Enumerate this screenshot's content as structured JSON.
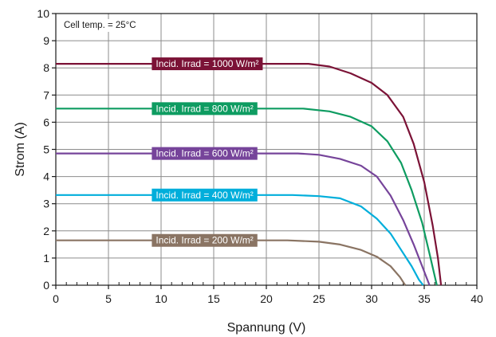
{
  "chart_data": {
    "type": "line",
    "title": "",
    "xlabel": "Spannung (V)",
    "ylabel": "Strom (A)",
    "xlim": [
      0,
      40
    ],
    "ylim": [
      0,
      10
    ],
    "x_ticks": [
      0,
      5,
      10,
      15,
      20,
      25,
      30,
      35,
      40
    ],
    "y_ticks": [
      0,
      1,
      2,
      3,
      4,
      5,
      6,
      7,
      8,
      9,
      10
    ],
    "grid": true,
    "annotation": "Cell temp. = 25°C",
    "series": [
      {
        "name": "Incid. Irrad = 1000 W/m²",
        "color": "#7b1236",
        "label_at": {
          "x": 9.5,
          "y": 8.15
        },
        "points": [
          [
            0,
            8.15
          ],
          [
            24,
            8.15
          ],
          [
            26,
            8.05
          ],
          [
            28,
            7.8
          ],
          [
            30,
            7.45
          ],
          [
            31.5,
            7.0
          ],
          [
            33,
            6.2
          ],
          [
            34,
            5.2
          ],
          [
            35,
            3.8
          ],
          [
            35.8,
            2.2
          ],
          [
            36.3,
            1.0
          ],
          [
            36.6,
            0
          ]
        ]
      },
      {
        "name": "Incid. Irrad = 800 W/m²",
        "color": "#0e9c61",
        "label_at": {
          "x": 9.5,
          "y": 6.5
        },
        "points": [
          [
            0,
            6.5
          ],
          [
            23.5,
            6.5
          ],
          [
            26,
            6.4
          ],
          [
            28,
            6.2
          ],
          [
            30,
            5.85
          ],
          [
            31.5,
            5.3
          ],
          [
            32.8,
            4.5
          ],
          [
            33.8,
            3.5
          ],
          [
            34.8,
            2.3
          ],
          [
            35.6,
            1.0
          ],
          [
            36.2,
            0
          ]
        ]
      },
      {
        "name": "Incid. Irrad = 600 W/m²",
        "color": "#76449a",
        "label_at": {
          "x": 9.5,
          "y": 4.85
        },
        "points": [
          [
            0,
            4.85
          ],
          [
            23,
            4.85
          ],
          [
            25,
            4.8
          ],
          [
            27,
            4.65
          ],
          [
            29,
            4.4
          ],
          [
            30.5,
            4.0
          ],
          [
            31.8,
            3.3
          ],
          [
            33,
            2.4
          ],
          [
            34,
            1.5
          ],
          [
            34.8,
            0.7
          ],
          [
            35.5,
            0
          ]
        ]
      },
      {
        "name": "Incid. Irrad = 400 W/m²",
        "color": "#00aedb",
        "label_at": {
          "x": 9.5,
          "y": 3.32
        },
        "points": [
          [
            0,
            3.32
          ],
          [
            22.5,
            3.32
          ],
          [
            25,
            3.28
          ],
          [
            27,
            3.2
          ],
          [
            29,
            2.9
          ],
          [
            30.5,
            2.45
          ],
          [
            31.8,
            1.9
          ],
          [
            32.8,
            1.3
          ],
          [
            33.8,
            0.7
          ],
          [
            34.5,
            0.2
          ],
          [
            34.9,
            0
          ]
        ]
      },
      {
        "name": "Incid. Irrad = 200 W/m²",
        "color": "#8a7463",
        "label_at": {
          "x": 9.5,
          "y": 1.65
        },
        "points": [
          [
            0,
            1.65
          ],
          [
            22,
            1.65
          ],
          [
            25,
            1.6
          ],
          [
            27,
            1.5
          ],
          [
            29,
            1.3
          ],
          [
            30.5,
            1.05
          ],
          [
            31.8,
            0.7
          ],
          [
            32.7,
            0.3
          ],
          [
            33.2,
            0
          ]
        ]
      }
    ]
  }
}
